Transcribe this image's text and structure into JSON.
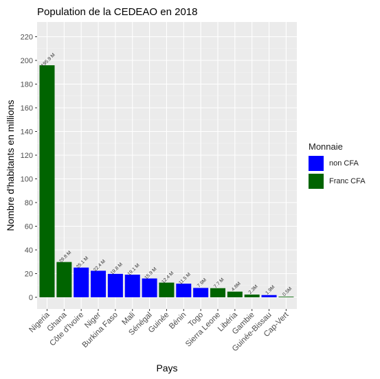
{
  "chart_data": {
    "type": "bar",
    "title": "Population de la CEDEAO en 2018",
    "xlabel": "Pays",
    "ylabel": "Nombre d'habitants en millions",
    "ylim": [
      0,
      230
    ],
    "yticks": [
      0,
      20,
      40,
      60,
      80,
      100,
      120,
      140,
      160,
      180,
      200,
      220
    ],
    "grid": true,
    "legend_position": "right",
    "legend_title": "Monnaie",
    "legend": [
      {
        "name": "non CFA",
        "color": "#0000ff"
      },
      {
        "name": "Franc CFA",
        "color": "#006400"
      }
    ],
    "categories": [
      "Nigeria",
      "Ghana",
      "Côte d'Ivoire",
      "Niger",
      "Burkina Faso",
      "Mali",
      "Sénégal",
      "Guinée",
      "Bénin",
      "Togo",
      "Sierra Leone",
      "Libéria",
      "Gambie",
      "Guinée-Bissau",
      "Cap-Vert"
    ],
    "values": [
      195.9,
      29.8,
      25.1,
      22.4,
      19.8,
      19.1,
      15.9,
      12.4,
      11.5,
      7.9,
      7.7,
      4.8,
      2.3,
      1.9,
      0.5
    ],
    "value_labels": [
      "195.9 M",
      "29.8 M",
      "25.1 M",
      "22.4 M",
      "19.8 M",
      "19.1 M",
      "15.9 M",
      "12.4 M",
      "11.5 M",
      "7.9M",
      "7.7 M",
      "4.8M",
      "2.3M",
      "1.9M",
      "0.5M"
    ],
    "group": [
      "Franc CFA",
      "Franc CFA",
      "non CFA",
      "non CFA",
      "non CFA",
      "non CFA",
      "non CFA",
      "Franc CFA",
      "non CFA",
      "non CFA",
      "Franc CFA",
      "Franc CFA",
      "Franc CFA",
      "non CFA",
      "Franc CFA"
    ]
  }
}
